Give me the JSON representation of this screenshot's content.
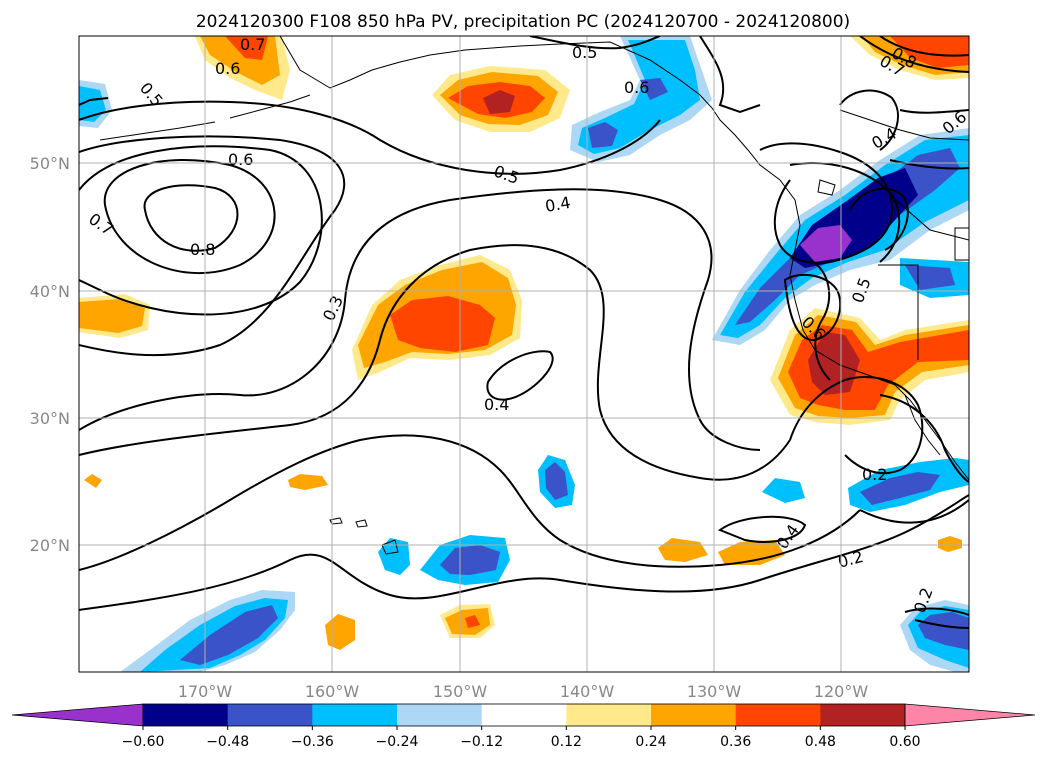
{
  "title": "2024120300 F108 850 hPa PV, precipitation PC (2024120700 - 2024120800)",
  "lon_labels": [
    "170°W",
    "160°W",
    "150°W",
    "140°W",
    "130°W",
    "120°W"
  ],
  "lat_labels": [
    "50°N",
    "40°N",
    "30°N",
    "20°N"
  ],
  "colorbar": {
    "ticks": [
      "−0.60",
      "−0.48",
      "−0.36",
      "−0.24",
      "−0.12",
      "0.12",
      "0.24",
      "0.36",
      "0.48",
      "0.60"
    ],
    "colors": [
      "#9932cc",
      "#00008b",
      "#3a53c8",
      "#00bfff",
      "#add8f5",
      "#ffffff",
      "#ffe98a",
      "#ffa500",
      "#ff4500",
      "#b22222",
      "#ff85a8"
    ]
  },
  "contour_labels": {
    "c1": "0.7",
    "c2": "0.6",
    "c3": "0.5",
    "c4": "0.6",
    "c5": "0.7",
    "c6": "0.8",
    "c7": "0.3",
    "c8": "0.5",
    "c9": "0.4",
    "c10": "0.5",
    "c11": "0.6",
    "c12": "0.8",
    "c13": "0.7",
    "c14": "0.4",
    "c15": "0.6",
    "c16": "0.5",
    "c17": "0.6",
    "c18": "0.4",
    "c19": "0.2",
    "c20": "0.4",
    "c21": "0.2",
    "c22": "0.2"
  }
}
